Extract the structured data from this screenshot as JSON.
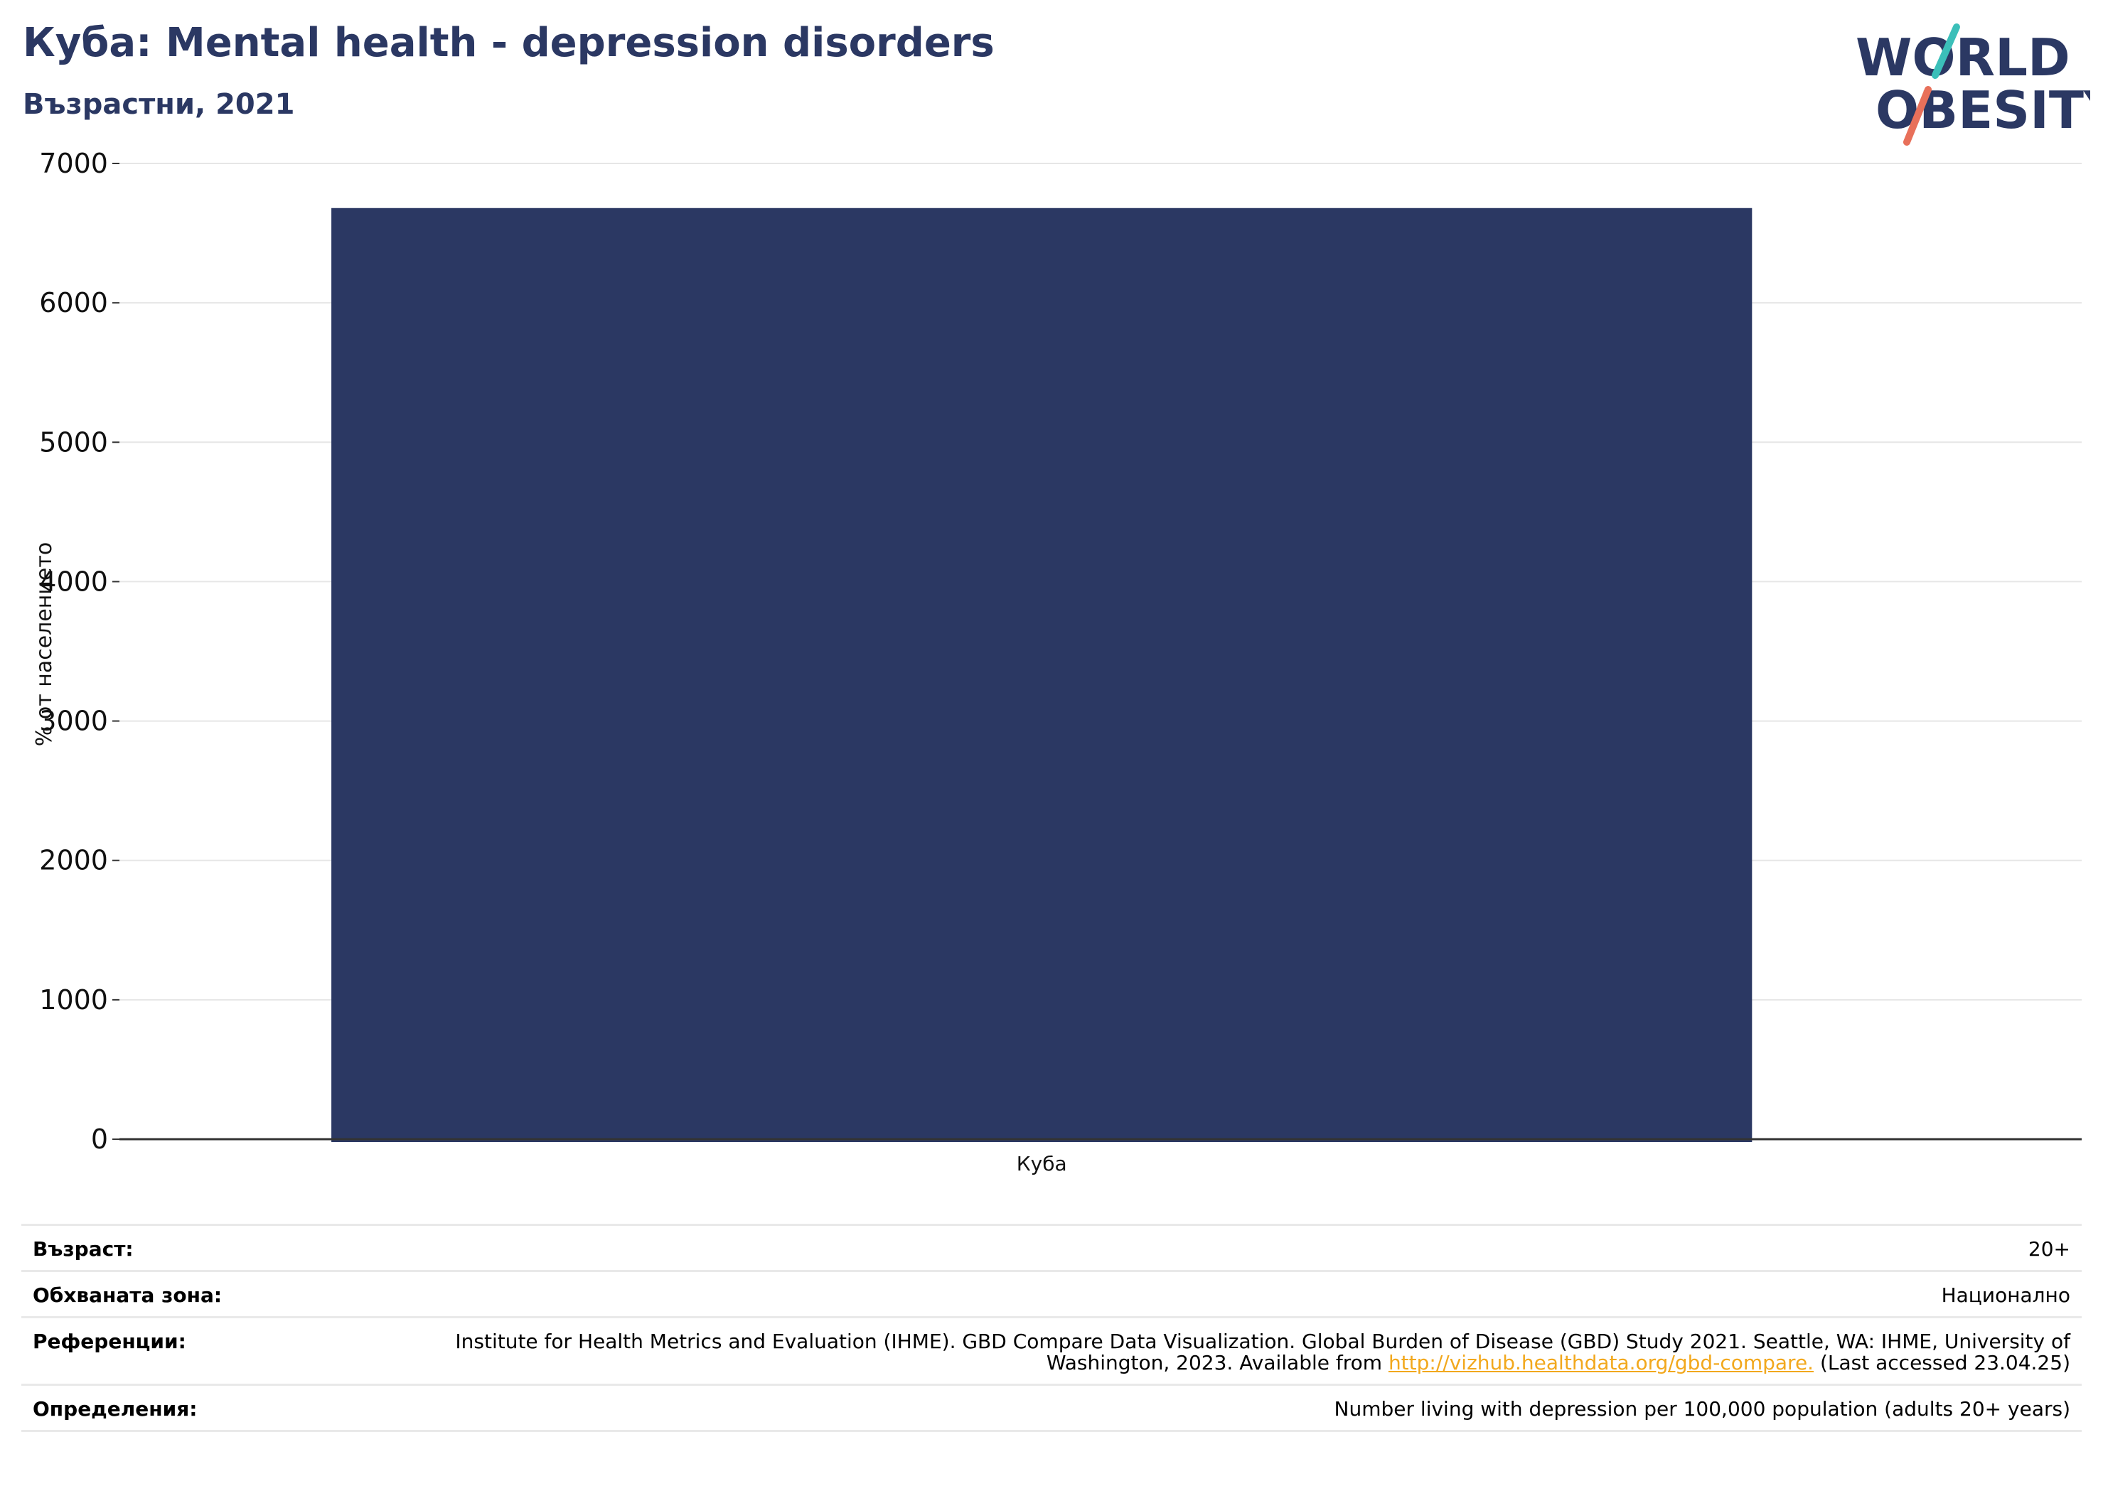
{
  "header": {
    "title": "Куба: Mental health - depression disorders",
    "subtitle": "Възрастни, 2021"
  },
  "logo": {
    "line1": "WORLD",
    "line2": "OBESITY",
    "colors": {
      "text": "#2b3863",
      "slash_top": "#3bbfb9",
      "slash_bottom": "#e8705a"
    }
  },
  "chart_data": {
    "type": "bar",
    "categories": [
      "Куба"
    ],
    "values": [
      6680
    ],
    "ylabel": "% от населението",
    "ylim": [
      0,
      7000
    ],
    "yticks": [
      0,
      1000,
      2000,
      3000,
      4000,
      5000,
      6000,
      7000
    ],
    "grid": true,
    "bar_color": "#2b3863"
  },
  "info": {
    "age_label": "Възраст:",
    "age_value": "20+",
    "area_label": "Обхваната зона:",
    "area_value": "Национално",
    "ref_label": "Референции:",
    "ref_text_before": "Institute for Health Metrics and Evaluation (IHME). GBD Compare Data Visualization. Global Burden of Disease (GBD) Study 2021. Seattle, WA: IHME, University of Washington, 2023. Available from ",
    "ref_link": "http://vizhub.healthdata.org/gbd-compare.",
    "ref_text_after": " (Last accessed 23.04.25)",
    "def_label": "Определения:",
    "def_value": "Number living with depression per 100,000 population (adults 20+ years)"
  }
}
